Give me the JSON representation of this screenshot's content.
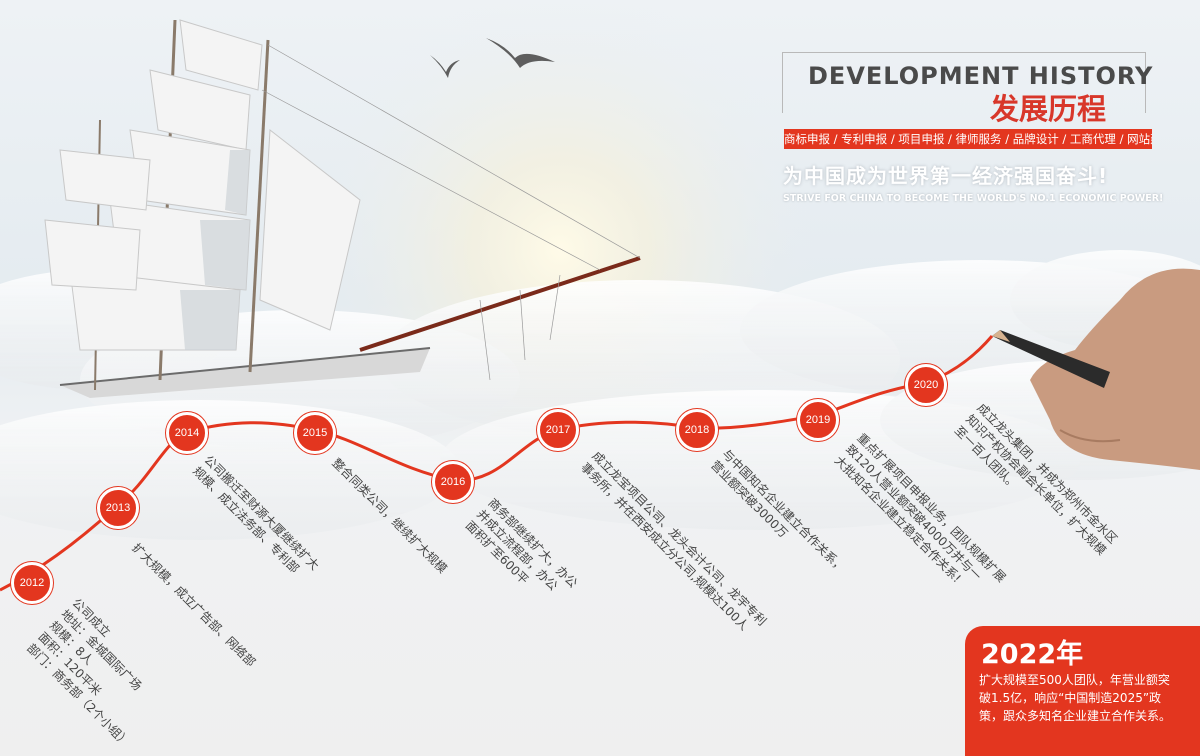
{
  "header": {
    "title_en": "DEVELOPMENT HISTORY",
    "title_cn": "发展历程",
    "services": "商标申报 / 专利申报 / 项目申报 / 律师服务 / 品牌设计 / 工商代理 / 网站建设",
    "slogan_cn": "为中国成为世界第一经济强国奋斗!",
    "slogan_en": "STRIVE FOR CHINA TO BECOME THE WORLD'S NO.1 ECONOMIC POWER!"
  },
  "timeline": [
    {
      "year": "2012",
      "lines": [
        "公司成立",
        "地址：金城国际广场",
        "规模：8人",
        "面积：120平米",
        "部门：商务部（2个小组）"
      ]
    },
    {
      "year": "2013",
      "lines": [
        "扩大规模，成立广告部、网络部"
      ]
    },
    {
      "year": "2014",
      "lines": [
        "公司搬迁至财源大厦继续扩大",
        "规模、成立法务部、专利部"
      ]
    },
    {
      "year": "2015",
      "lines": [
        "整合同类公司，继续扩大规模"
      ]
    },
    {
      "year": "2016",
      "lines": [
        "商务部继续扩大，办公",
        "并成立流程部，办公",
        "面积扩至600平"
      ]
    },
    {
      "year": "2017",
      "lines": [
        "成立龙宝项目公司、龙头会计公司、龙宇专利",
        "事务所，并在西安成立分公司,规模达100人"
      ]
    },
    {
      "year": "2018",
      "lines": [
        "与中国知名企业建立合作关系，",
        "营业额突破3000万"
      ]
    },
    {
      "year": "2019",
      "lines": [
        "重点扩展项目申报业务，团队规模扩展",
        "致120人营业额突破4000万并与一",
        "大批知名企业建立稳定合作关系!"
      ]
    },
    {
      "year": "2020",
      "lines": [
        "成立龙头集团，并成为郑州市金水区",
        "知识产权协会副会长单位，扩大规模",
        "至一百人团队。"
      ]
    }
  ],
  "highlight": {
    "year": "2022年",
    "lines": [
      "扩大规模至500人团队，年营业额突",
      "破1.5亿，响应“中国制造2025”政",
      "策，跟众多知名企业建立合作关系。"
    ]
  },
  "colors": {
    "accent": "#e3361f",
    "title_red": "#d8372a"
  }
}
